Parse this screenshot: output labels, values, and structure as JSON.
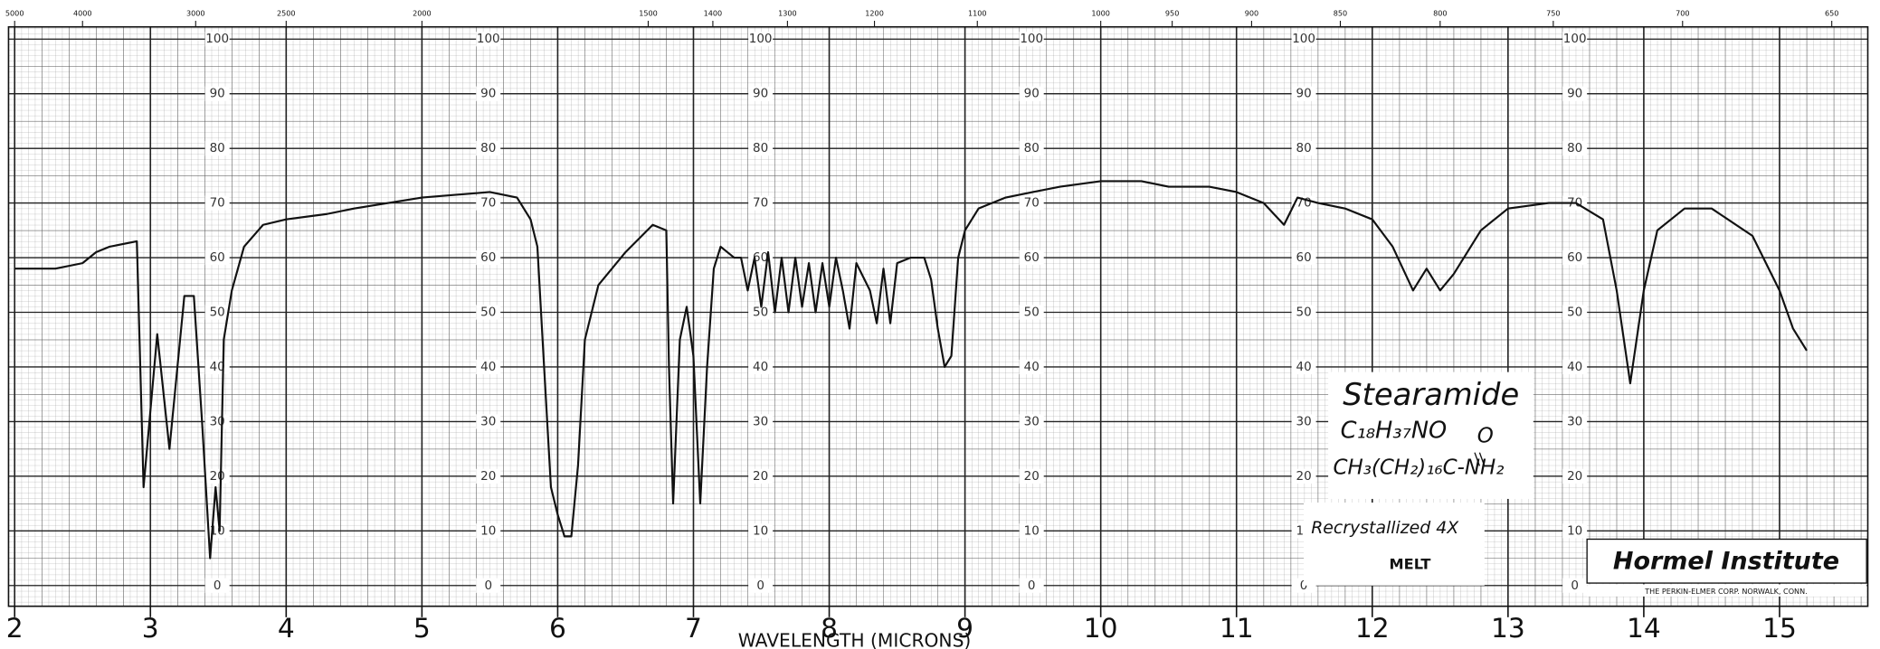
{
  "chart_data": {
    "type": "line",
    "x_label": "WAVELENGTH (MICRONS)",
    "x": [
      2,
      2.3,
      2.5,
      2.6,
      2.7,
      2.9,
      2.95,
      3.05,
      3.14,
      3.25,
      3.32,
      3.38,
      3.44,
      3.48,
      3.51,
      3.54,
      3.6,
      3.69,
      3.83,
      4,
      4.3,
      4.5,
      5,
      5.5,
      5.7,
      5.8,
      5.85,
      5.9,
      5.95,
      6,
      6.05,
      6.1,
      6.15,
      6.2,
      6.3,
      6.5,
      6.7,
      6.8,
      6.82,
      6.85,
      6.9,
      6.95,
      7,
      7.05,
      7.1,
      7.15,
      7.2,
      7.3,
      7.35,
      7.4,
      7.45,
      7.5,
      7.55,
      7.6,
      7.65,
      7.7,
      7.75,
      7.8,
      7.85,
      7.9,
      7.95,
      8,
      8.05,
      8.1,
      8.15,
      8.2,
      8.3,
      8.35,
      8.4,
      8.45,
      8.5,
      8.6,
      8.7,
      8.75,
      8.8,
      8.85,
      8.9,
      8.95,
      9,
      9.1,
      9.3,
      9.5,
      9.7,
      10,
      10.3,
      10.5,
      10.8,
      11,
      11.2,
      11.35,
      11.45,
      11.6,
      11.8,
      12,
      12.15,
      12.3,
      12.4,
      12.5,
      12.6,
      12.8,
      13,
      13.3,
      13.5,
      13.7,
      13.8,
      13.9,
      14,
      14.1,
      14.3,
      14.5,
      14.8,
      15,
      15.1,
      15.2
    ],
    "values": [
      58,
      58,
      59,
      61,
      62,
      63,
      18,
      46,
      25,
      53,
      53,
      30,
      5,
      18,
      10,
      45,
      54,
      62,
      66,
      67,
      68,
      69,
      71,
      72,
      71,
      67,
      62,
      40,
      18,
      13,
      9,
      9,
      22,
      45,
      55,
      61,
      66,
      65,
      40,
      15,
      45,
      51,
      42,
      15,
      40,
      58,
      62,
      60,
      60,
      54,
      60,
      51,
      61,
      50,
      60,
      50,
      60,
      51,
      59,
      50,
      59,
      51,
      60,
      54,
      47,
      59,
      54,
      48,
      58,
      48,
      59,
      60,
      60,
      56,
      47,
      40,
      42,
      60,
      65,
      69,
      71,
      72,
      73,
      74,
      74,
      73,
      73,
      72,
      70,
      66,
      71,
      70,
      69,
      67,
      62,
      54,
      58,
      54,
      57,
      65,
      69,
      70,
      70,
      67,
      54,
      37,
      54,
      65,
      69,
      69,
      64,
      54,
      47,
      43
    ],
    "color": "#111111",
    "xlim": [
      2,
      15.65
    ],
    "ylim": [
      0,
      100
    ],
    "xticks": [
      2,
      3,
      4,
      5,
      6,
      7,
      8,
      9,
      10,
      11,
      12,
      13,
      14,
      15
    ],
    "yticks": [
      0,
      10,
      20,
      30,
      40,
      50,
      60,
      70,
      80,
      90,
      100
    ],
    "x2ticks": [
      5000,
      4000,
      3000,
      2500,
      2000,
      1500,
      1400,
      1300,
      1200,
      1100,
      1000,
      950,
      900,
      850,
      800,
      750,
      700,
      650
    ],
    "grid": true,
    "annotations": {
      "name": "Stearamide",
      "formula": "C₁₈H₃₇NO",
      "structure_top": "O",
      "structure": "CH₃(CH₂)₁₆C-NH₂",
      "prep": "Recrystallized 4X",
      "state": "MELT",
      "lab": "Hormel Institute",
      "maker": "THE PERKIN-ELMER CORP. NORWALK, CONN."
    }
  }
}
